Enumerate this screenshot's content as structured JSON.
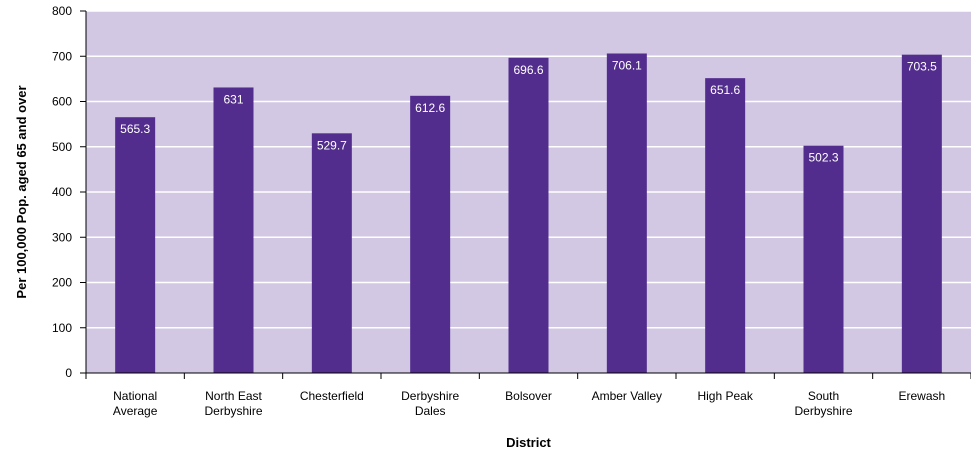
{
  "chart_data": {
    "type": "bar",
    "xlabel": "District",
    "ylabel": "Per 100,000 Pop. aged 65 and over",
    "ylim": [
      0,
      800
    ],
    "yticks": [
      0,
      100,
      200,
      300,
      400,
      500,
      600,
      700,
      800
    ],
    "grid": true,
    "categories": [
      [
        "National",
        "Average"
      ],
      [
        "North East",
        "Derbyshire"
      ],
      [
        "Chesterfield"
      ],
      [
        "Derbyshire",
        "Dales"
      ],
      [
        "Bolsover"
      ],
      [
        "Amber Valley"
      ],
      [
        "High Peak"
      ],
      [
        "South",
        "Derbyshire"
      ],
      [
        "Erewash"
      ]
    ],
    "values": [
      565.3,
      631,
      529.7,
      612.6,
      696.6,
      706.1,
      651.6,
      502.3,
      703.5
    ],
    "value_labels": [
      "565.3",
      "631",
      "529.7",
      "612.6",
      "696.6",
      "706.1",
      "651.6",
      "502.3",
      "703.5"
    ],
    "colors": {
      "plot_background": "#d2c8e4",
      "bar": "#532d8d",
      "gridline": "#ffffff",
      "axis": "#000000"
    }
  }
}
